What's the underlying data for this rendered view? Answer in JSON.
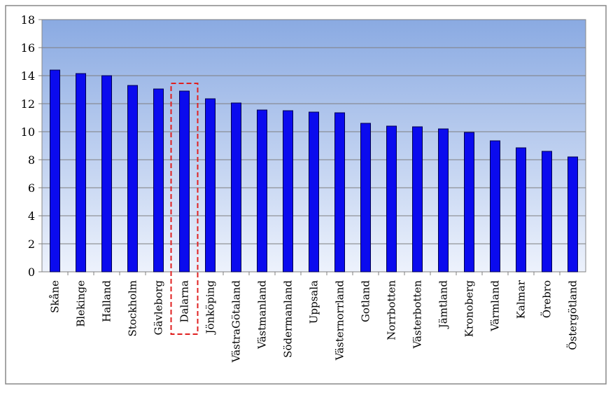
{
  "chart_data": {
    "type": "bar",
    "title": "",
    "xlabel": "",
    "ylabel": "",
    "ylim": [
      0,
      18
    ],
    "yticks": [
      0,
      2,
      4,
      6,
      8,
      10,
      12,
      14,
      16,
      18
    ],
    "grid": true,
    "legend": "none",
    "highlighted_category": "Dalarna",
    "categories": [
      "Skåne",
      "Blekinge",
      "Halland",
      "Stockholm",
      "Gävleborg",
      "Dalarna",
      "Jönköping",
      "VästraGötaland",
      "Västmanland",
      "Södermanland",
      "Uppsala",
      "Västernorrland",
      "Gotland",
      "Norrbotten",
      "Västerbotten",
      "Jämtland",
      "Kronoberg",
      "Värmland",
      "Kalmar",
      "Örebro",
      "Östergötland"
    ],
    "values": [
      14.4,
      14.15,
      14.0,
      13.3,
      13.05,
      12.9,
      12.35,
      12.05,
      11.55,
      11.5,
      11.4,
      11.35,
      10.6,
      10.4,
      10.35,
      10.2,
      9.95,
      9.35,
      8.85,
      8.6,
      8.2
    ],
    "colors": {
      "bar": "#0b0bee",
      "bar_stroke": "#000050",
      "plot_top": "#8aaae2",
      "plot_bottom": "#edf2fc",
      "grid": "#7f7f7f",
      "highlight": "#e02020",
      "frame": "#888888"
    }
  }
}
